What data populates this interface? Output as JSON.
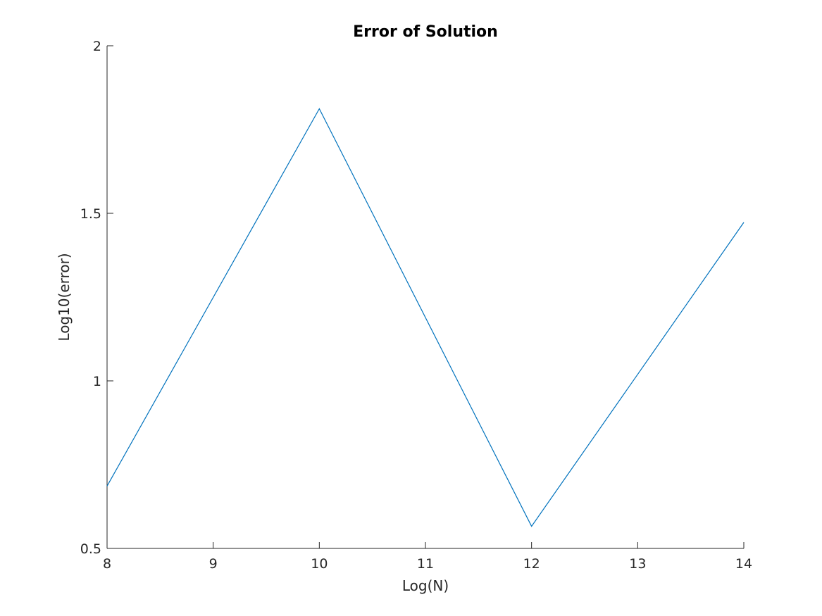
{
  "chart_data": {
    "type": "line",
    "title": "Error of Solution",
    "xlabel": "Log(N)",
    "ylabel": "Log10(error)",
    "xlim": [
      8,
      14
    ],
    "ylim": [
      0.5,
      2
    ],
    "xticks": [
      8,
      9,
      10,
      11,
      12,
      13,
      14
    ],
    "yticks": [
      0.5,
      1,
      1.5,
      2
    ],
    "xtick_labels": [
      "8",
      "9",
      "10",
      "11",
      "12",
      "13",
      "14"
    ],
    "ytick_labels": [
      "0.5",
      "1",
      "1.5",
      "2"
    ],
    "grid": false,
    "series": [
      {
        "x": [
          8,
          10,
          12,
          14
        ],
        "y": [
          0.686,
          1.812,
          0.566,
          1.473
        ],
        "color": "#0072BD"
      }
    ]
  }
}
